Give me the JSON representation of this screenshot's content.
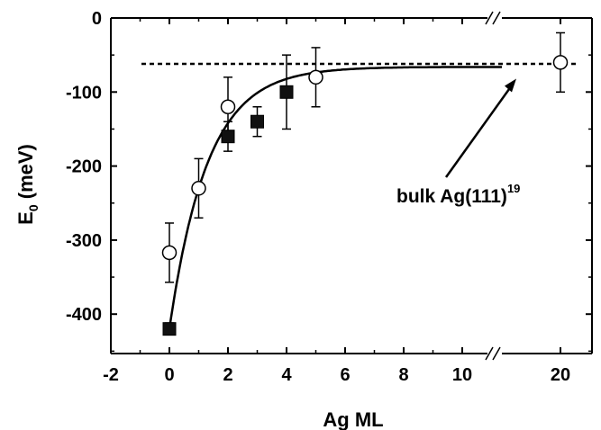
{
  "chart_data": {
    "type": "scatter",
    "xlabel": "Ag ML",
    "ylabel_main": "E",
    "ylabel_sub": "0",
    "ylabel_rest": " (meV)",
    "xlim": [
      -2,
      20
    ],
    "ylim": [
      -450,
      0
    ],
    "axis_break": {
      "from": 10,
      "to": 20
    },
    "x_ticks": [
      -2,
      0,
      2,
      4,
      6,
      8,
      10,
      20
    ],
    "y_ticks": [
      0,
      -100,
      -200,
      -300,
      -400
    ],
    "series": [
      {
        "marker": "filled-square",
        "points": [
          {
            "x": 0,
            "y": -420,
            "err": 8
          },
          {
            "x": 2,
            "y": -160,
            "err": 20
          },
          {
            "x": 3,
            "y": -140,
            "err": 20
          },
          {
            "x": 4,
            "y": -100,
            "err": 50
          }
        ]
      },
      {
        "marker": "open-circle",
        "points": [
          {
            "x": 0,
            "y": -317,
            "err": 40
          },
          {
            "x": 1,
            "y": -230,
            "err": 40
          },
          {
            "x": 2,
            "y": -120,
            "err": 40
          },
          {
            "x": 5,
            "y": -80,
            "err": 40
          },
          {
            "x": 20,
            "y": -60,
            "err": 40
          }
        ]
      }
    ],
    "fit_curve": {
      "style": "solid",
      "x_range": [
        0,
        10
      ],
      "y_start": -420,
      "y_limit": -66,
      "decay_ml": 1.3
    },
    "reference_line": {
      "style": "dashed",
      "y": -62
    },
    "annotation": {
      "text": "bulk Ag(111)",
      "superscript": "19",
      "arrow_target": {
        "x": 10,
        "y": -82
      }
    }
  }
}
